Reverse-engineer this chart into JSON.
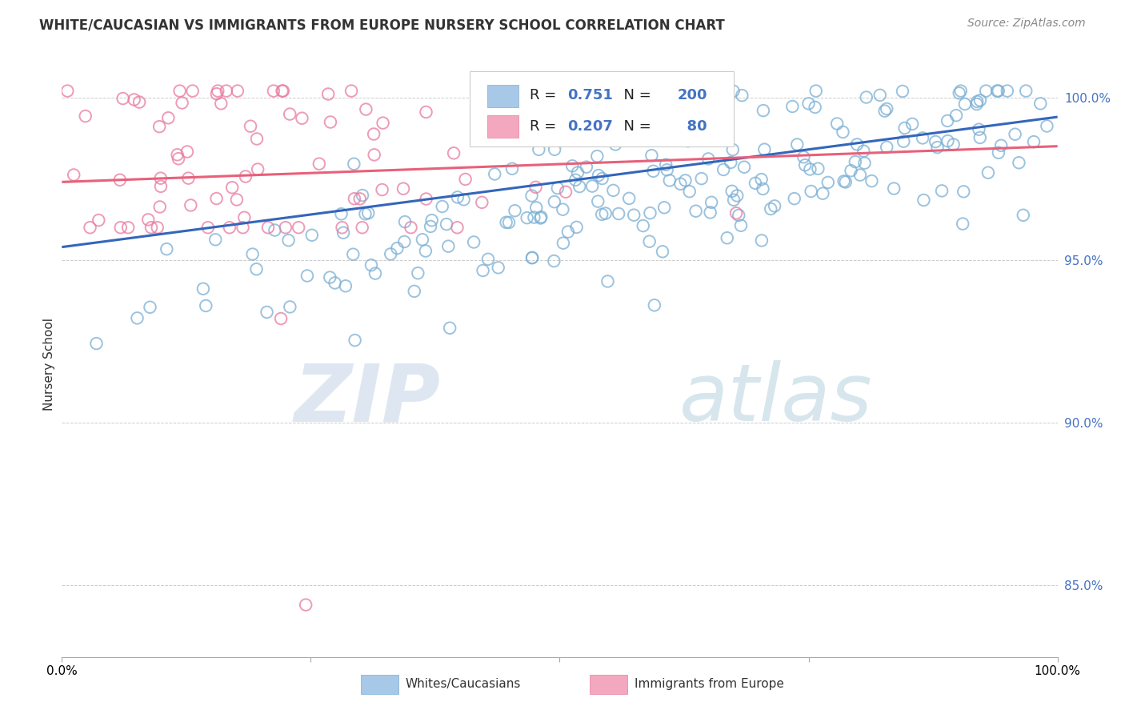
{
  "title": "WHITE/CAUCASIAN VS IMMIGRANTS FROM EUROPE NURSERY SCHOOL CORRELATION CHART",
  "source": "Source: ZipAtlas.com",
  "ylabel": "Nursery School",
  "blue_R": 0.751,
  "blue_N": 200,
  "pink_R": 0.207,
  "pink_N": 80,
  "blue_color": "#a8c8e8",
  "pink_color": "#f4a8c0",
  "blue_edge_color": "#7aafd4",
  "pink_edge_color": "#e87aa0",
  "blue_line_color": "#3366bb",
  "pink_line_color": "#e8607a",
  "legend_label_blue": "Whites/Caucasians",
  "legend_label_pink": "Immigrants from Europe",
  "x_min": 0.0,
  "x_max": 1.0,
  "y_min": 0.828,
  "y_max": 1.008,
  "y_ticks": [
    0.85,
    0.9,
    0.95,
    1.0
  ],
  "y_tick_labels": [
    "85.0%",
    "90.0%",
    "95.0%",
    "100.0%"
  ],
  "watermark_zip": "ZIP",
  "watermark_atlas": "atlas",
  "background_color": "#ffffff",
  "title_fontsize": 12,
  "source_fontsize": 10,
  "seed": 17
}
